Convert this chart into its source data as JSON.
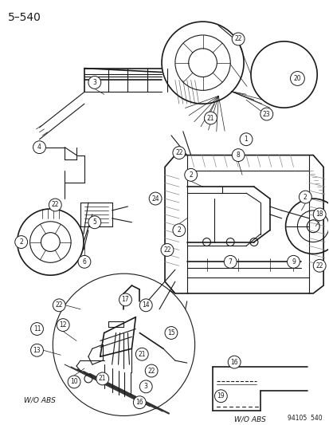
{
  "title": "5–540",
  "background_color": "#ffffff",
  "line_color": "#1a1a1a",
  "fig_width": 4.14,
  "fig_height": 5.33,
  "dpi": 100,
  "part_number": "94105 540",
  "gray": "#888888",
  "light_gray": "#cccccc"
}
